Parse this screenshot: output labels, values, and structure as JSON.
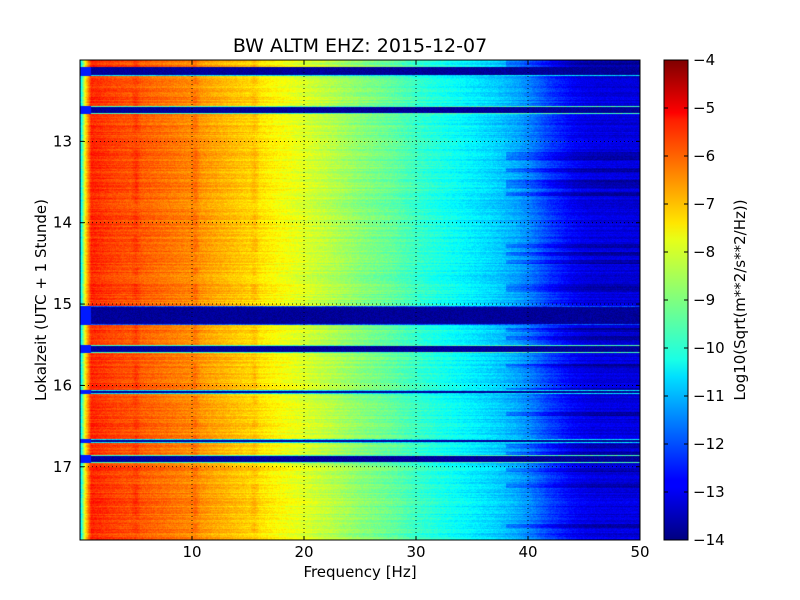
{
  "chart_data": {
    "type": "heatmap",
    "title": "BW ALTM EHZ: 2015-12-07",
    "xlabel": "Frequency [Hz]",
    "ylabel": "Lokalzeit (UTC + 1 Stunde)",
    "xlim": [
      0,
      50
    ],
    "ylim": [
      17.9,
      12.0
    ],
    "y_inverted": true,
    "xticks": [
      10,
      20,
      30,
      40,
      50
    ],
    "xtick_labels": [
      "10",
      "20",
      "30",
      "40",
      "50"
    ],
    "yticks": [
      13,
      14,
      15,
      16,
      17
    ],
    "ytick_labels": [
      "13",
      "14",
      "15",
      "16",
      "17"
    ],
    "grid": true,
    "colormap": "jet",
    "colorbar": {
      "label": "Log10(Sqrt(m**2/s**2/Hz))",
      "min": -14,
      "max": -4,
      "ticks": [
        -4,
        -5,
        -6,
        -7,
        -8,
        -9,
        -10,
        -11,
        -12,
        -13,
        -14
      ],
      "tick_labels": [
        "−4",
        "−5",
        "−6",
        "−7",
        "−8",
        "−9",
        "−10",
        "−11",
        "−12",
        "−13",
        "−14"
      ]
    },
    "spectrum_profile": {
      "frequency_hz": [
        0,
        0.5,
        1,
        3,
        5,
        8,
        10,
        12,
        15,
        18,
        20,
        22,
        25,
        28,
        30,
        32,
        35,
        37,
        39,
        40,
        41,
        42,
        43,
        44,
        45,
        46,
        50
      ],
      "value": [
        -11,
        -7.5,
        -5.6,
        -5.9,
        -6.1,
        -6.4,
        -6.6,
        -6.9,
        -7.3,
        -7.8,
        -8.1,
        -8.4,
        -8.9,
        -9.3,
        -9.7,
        -10.0,
        -10.4,
        -10.7,
        -11.1,
        -11.4,
        -11.8,
        -12.2,
        -12.5,
        -12.8,
        -12.95,
        -13.05,
        -13.1
      ]
    },
    "spectral_peaks_hz": [
      5.0,
      10.3,
      15.6
    ],
    "gaps": [
      {
        "start": 12.08,
        "end": 12.2,
        "value": -14,
        "edge_value": -10.5
      },
      {
        "start": 12.56,
        "end": 12.66,
        "value": -14,
        "edge_value": -9.5
      },
      {
        "start": 15.02,
        "end": 15.26,
        "value": -14,
        "edge_value": -12
      },
      {
        "start": 15.5,
        "end": 15.6,
        "value": -14,
        "edge_value": -9.5
      },
      {
        "start": 16.06,
        "end": 16.11,
        "value": -14,
        "edge_value": -10.5
      },
      {
        "start": 16.66,
        "end": 16.71,
        "value": -14,
        "edge_value": -10.5
      },
      {
        "start": 16.86,
        "end": 16.95,
        "value": -14,
        "edge_value": -9.5
      }
    ]
  }
}
